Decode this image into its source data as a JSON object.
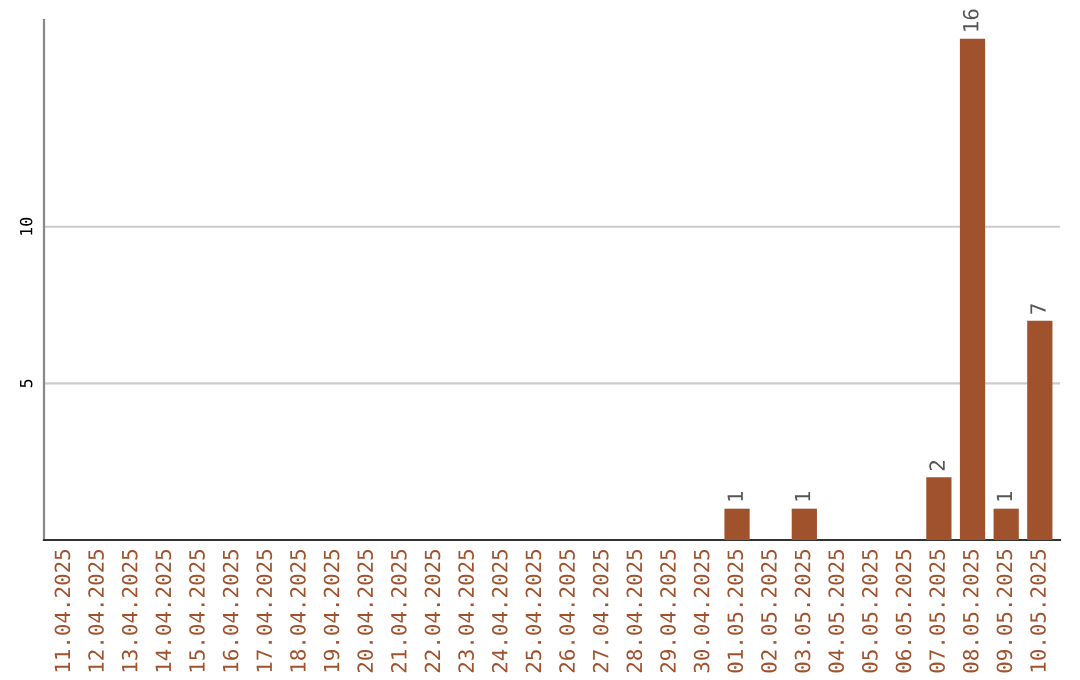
{
  "chart_data": {
    "type": "bar",
    "categories": [
      "11.04.2025",
      "12.04.2025",
      "13.04.2025",
      "14.04.2025",
      "15.04.2025",
      "16.04.2025",
      "17.04.2025",
      "18.04.2025",
      "19.04.2025",
      "20.04.2025",
      "21.04.2025",
      "22.04.2025",
      "23.04.2025",
      "24.04.2025",
      "25.04.2025",
      "26.04.2025",
      "27.04.2025",
      "28.04.2025",
      "29.04.2025",
      "30.04.2025",
      "01.05.2025",
      "02.05.2025",
      "03.05.2025",
      "04.05.2025",
      "05.05.2025",
      "06.05.2025",
      "07.05.2025",
      "08.05.2025",
      "09.05.2025",
      "10.05.2025"
    ],
    "values": [
      0,
      0,
      0,
      0,
      0,
      0,
      0,
      0,
      0,
      0,
      0,
      0,
      0,
      0,
      0,
      0,
      0,
      0,
      0,
      0,
      1,
      0,
      1,
      0,
      0,
      0,
      2,
      16,
      1,
      7
    ],
    "value_labels": [
      null,
      null,
      null,
      null,
      null,
      null,
      null,
      null,
      null,
      null,
      null,
      null,
      null,
      null,
      null,
      null,
      null,
      null,
      null,
      null,
      "1",
      null,
      "1",
      null,
      null,
      null,
      "2",
      "16",
      "1",
      "7"
    ],
    "color": "#a0522d",
    "ylim": [
      0,
      16.6
    ],
    "yticks": [
      5,
      10
    ],
    "grid": "y"
  }
}
